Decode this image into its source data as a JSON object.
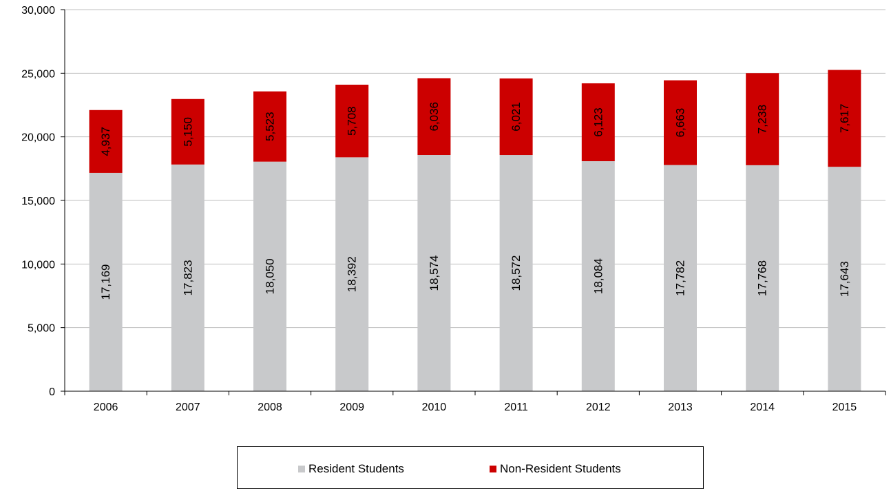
{
  "chart_data": {
    "type": "bar",
    "stacked": true,
    "categories": [
      "2006",
      "2007",
      "2008",
      "2009",
      "2010",
      "2011",
      "2012",
      "2013",
      "2014",
      "2015"
    ],
    "series": [
      {
        "name": "Resident Students",
        "color": "#c8c9cb",
        "values": [
          17169,
          17823,
          18050,
          18392,
          18574,
          18572,
          18084,
          17782,
          17768,
          17643
        ],
        "labels": [
          "17,169",
          "17,823",
          "18,050",
          "18,392",
          "18,574",
          "18,572",
          "18,084",
          "17,782",
          "17,768",
          "17,643"
        ]
      },
      {
        "name": "Non-Resident Students",
        "color": "#cc0000",
        "values": [
          4937,
          5150,
          5523,
          5708,
          6036,
          6021,
          6123,
          6663,
          7238,
          7617
        ],
        "labels": [
          "4,937",
          "5,150",
          "5,523",
          "5,708",
          "6,036",
          "6,021",
          "6,123",
          "6,663",
          "7,238",
          "7,617"
        ]
      }
    ],
    "ylim": [
      0,
      30000
    ],
    "yticks": [
      0,
      5000,
      10000,
      15000,
      20000,
      25000,
      30000
    ],
    "ytick_labels": [
      "0",
      "5,000",
      "10,000",
      "15,000",
      "20,000",
      "25,000",
      "30,000"
    ],
    "grid": true,
    "legend_position": "bottom",
    "title": "",
    "xlabel": "",
    "ylabel": ""
  },
  "legend": {
    "resident_label": "Resident Students",
    "nonresident_label": "Non-Resident Students"
  }
}
